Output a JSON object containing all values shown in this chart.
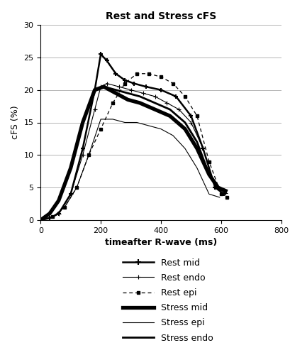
{
  "title": "Rest and Stress cFS",
  "xlabel": "timeafter R-wave (ms)",
  "ylabel": "cFS (%)",
  "xlim": [
    0,
    800
  ],
  "ylim": [
    0,
    30
  ],
  "xticks": [
    0,
    200,
    400,
    600,
    800
  ],
  "yticks": [
    0,
    5,
    10,
    15,
    20,
    25,
    30
  ],
  "rest_mid_x": [
    0,
    30,
    60,
    100,
    140,
    180,
    200,
    220,
    250,
    280,
    310,
    350,
    400,
    450,
    500,
    540,
    580,
    610
  ],
  "rest_mid_y": [
    0,
    0.3,
    1.0,
    4,
    11,
    20,
    25.5,
    24.5,
    22.5,
    21.5,
    21,
    20.5,
    20,
    19,
    16,
    11,
    5,
    4
  ],
  "rest_endo_x": [
    0,
    30,
    60,
    100,
    140,
    180,
    200,
    220,
    260,
    300,
    340,
    380,
    420,
    460,
    500,
    540,
    580,
    615
  ],
  "rest_endo_y": [
    0,
    0.3,
    1.0,
    4,
    10,
    17,
    20.5,
    21,
    20.5,
    20,
    19.5,
    19,
    18,
    17,
    15,
    11,
    5,
    4.2
  ],
  "rest_epi_x": [
    0,
    40,
    80,
    120,
    160,
    200,
    240,
    280,
    320,
    360,
    400,
    440,
    480,
    520,
    560,
    600,
    620
  ],
  "rest_epi_y": [
    0,
    0.5,
    2,
    5,
    10,
    14,
    18,
    21,
    22.5,
    22.5,
    22,
    21,
    19,
    16,
    9,
    4,
    3.5
  ],
  "stress_mid_x": [
    0,
    30,
    60,
    100,
    140,
    180,
    210,
    250,
    290,
    330,
    380,
    430,
    480,
    520,
    560,
    590,
    615
  ],
  "stress_mid_y": [
    0,
    1,
    3,
    8,
    15,
    20,
    20.5,
    19.5,
    18.5,
    18,
    17,
    16,
    14,
    11,
    7,
    5,
    4.5
  ],
  "stress_epi_x": [
    0,
    40,
    80,
    120,
    160,
    200,
    240,
    280,
    320,
    360,
    400,
    440,
    480,
    520,
    560,
    595
  ],
  "stress_epi_y": [
    0,
    0.5,
    2,
    5,
    10,
    15.5,
    15.5,
    15,
    15,
    14.5,
    14,
    13,
    11,
    8,
    4,
    3.5
  ],
  "stress_endo_x": [
    0,
    30,
    60,
    100,
    140,
    180,
    210,
    250,
    290,
    330,
    380,
    430,
    480,
    520,
    560,
    590,
    615
  ],
  "stress_endo_y": [
    0,
    1,
    3,
    8,
    15,
    20,
    20.5,
    20,
    19.5,
    19,
    18,
    17,
    15,
    12,
    7,
    5,
    4.5
  ],
  "legend_entries": [
    "Rest mid",
    "Rest endo",
    "Rest epi",
    "Stress mid",
    "Stress epi",
    "Stress endo"
  ],
  "background_color": "#ffffff",
  "grid_color": "#999999"
}
